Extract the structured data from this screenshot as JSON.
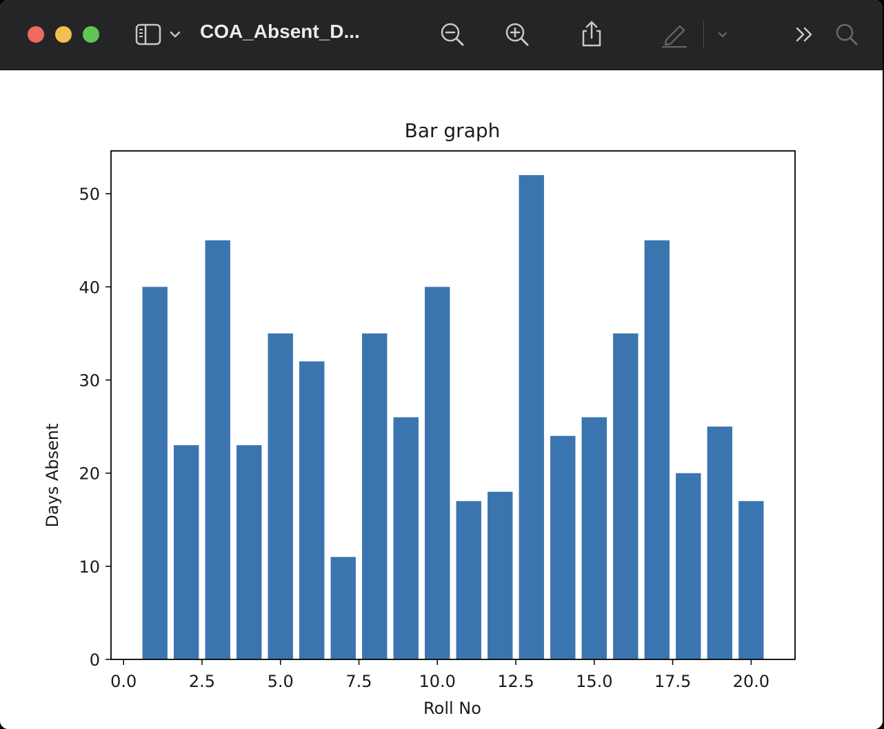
{
  "window": {
    "title": "COA_Absent_D...",
    "colors": {
      "titlebar": "#252528",
      "close": "#ed6a5e",
      "minimize": "#f5bf4f",
      "maximize": "#61c554"
    },
    "toolbar_icons": [
      "sidebar-icon",
      "chevron-down-icon",
      "zoom-out-icon",
      "zoom-in-icon",
      "share-icon",
      "markup-pen-icon",
      "chevron-down-icon",
      "more-chevrons-icon",
      "search-icon"
    ]
  },
  "chart_data": {
    "type": "bar",
    "title": "Bar graph",
    "xlabel": "Roll No",
    "ylabel": "Days Absent",
    "x": [
      1,
      2,
      3,
      4,
      5,
      6,
      7,
      8,
      9,
      10,
      11,
      12,
      13,
      14,
      15,
      16,
      17,
      18,
      19,
      20
    ],
    "values": [
      40,
      23,
      45,
      23,
      35,
      32,
      11,
      35,
      26,
      40,
      17,
      18,
      52,
      24,
      26,
      35,
      45,
      20,
      25,
      17
    ],
    "xlim": [
      -0.4,
      21.4
    ],
    "ylim": [
      0,
      54.6
    ],
    "xticks": [
      "0.0",
      "2.5",
      "5.0",
      "7.5",
      "10.0",
      "12.5",
      "15.0",
      "17.5",
      "20.0"
    ],
    "yticks": [
      "0",
      "10",
      "20",
      "30",
      "40",
      "50"
    ],
    "bar_color": "#3b75af",
    "grid": false,
    "legend": "none"
  }
}
